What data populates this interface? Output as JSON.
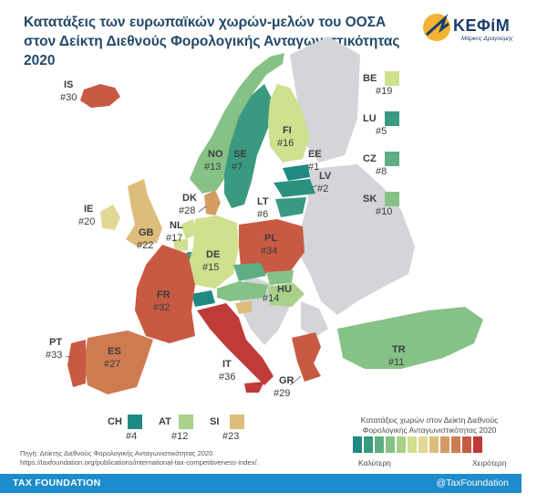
{
  "title_line1": "Κατατάξεις των ευρωπαϊκών χωρών-μελών του ΟΟΣΑ",
  "title_line2": "στον Δείκτη Διεθνούς Φορολογικής Ανταγωνιστικότητας 2020",
  "logo": {
    "name": "ΚΕΦίΜ",
    "sub": "Μάρκος Δραγούμης"
  },
  "colors": {
    "no_data": "#d3d5d8",
    "rank_scale": [
      "#1f8a83",
      "#3a9a81",
      "#5fae83",
      "#86c186",
      "#a9d18a",
      "#cfe08f",
      "#e2d895",
      "#dcbd7b",
      "#d49c63",
      "#cf7b52",
      "#c85a44",
      "#bf3b3a"
    ]
  },
  "countries": [
    {
      "code": "IS",
      "rank": "#30"
    },
    {
      "code": "NO",
      "rank": "#13"
    },
    {
      "code": "SE",
      "rank": "#7"
    },
    {
      "code": "FI",
      "rank": "#16"
    },
    {
      "code": "EE",
      "rank": "#1"
    },
    {
      "code": "LV",
      "rank": "#2"
    },
    {
      "code": "LT",
      "rank": "#6"
    },
    {
      "code": "DK",
      "rank": "#28"
    },
    {
      "code": "IE",
      "rank": "#20"
    },
    {
      "code": "GB",
      "rank": "#22"
    },
    {
      "code": "NL",
      "rank": "#17"
    },
    {
      "code": "DE",
      "rank": "#15"
    },
    {
      "code": "PL",
      "rank": "#34"
    },
    {
      "code": "FR",
      "rank": "#32"
    },
    {
      "code": "HU",
      "rank": "#14"
    },
    {
      "code": "PT",
      "rank": "#33"
    },
    {
      "code": "ES",
      "rank": "#27"
    },
    {
      "code": "IT",
      "rank": "#36"
    },
    {
      "code": "GR",
      "rank": "#29"
    },
    {
      "code": "TR",
      "rank": "#11"
    }
  ],
  "side_keys": [
    {
      "code": "BE",
      "rank": "#19"
    },
    {
      "code": "LU",
      "rank": "#5"
    },
    {
      "code": "CZ",
      "rank": "#8"
    },
    {
      "code": "SK",
      "rank": "#10"
    },
    {
      "code": "CH",
      "rank": "#4"
    },
    {
      "code": "AT",
      "rank": "#12"
    },
    {
      "code": "SI",
      "rank": "#23"
    }
  ],
  "legend": {
    "title_line1": "Κατατάξεις χωρών στον Δείκτη Διεθνούς",
    "title_line2": "Φορολογικής Ανταγωνιστικότητας 2020",
    "low_label": "Καλύτερη",
    "high_label": "Χειρότερη"
  },
  "source_line1": "Πηγή: Δείκτης Διεθνούς Φορολογικής Ανταγωνιστικότητας 2020",
  "source_line2": "https://taxfoundation.org/publications/international-tax-competitiveness-index/.",
  "footer": {
    "left": "TAX FOUNDATION",
    "right": "@TaxFoundation"
  }
}
